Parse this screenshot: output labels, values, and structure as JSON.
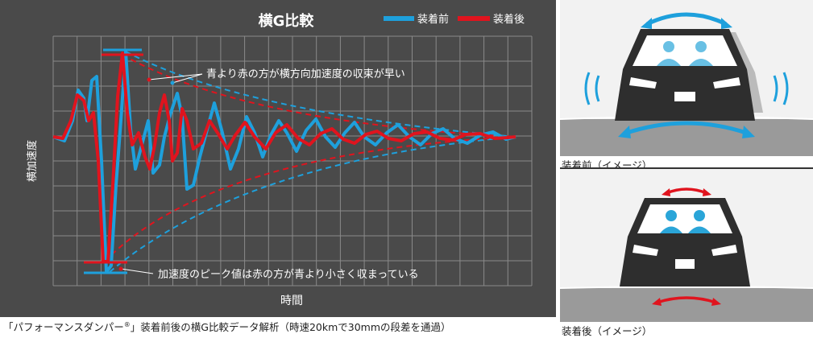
{
  "chart_data": {
    "type": "line",
    "title": "横G比較",
    "xlabel": "時間",
    "ylabel": "横加速度",
    "grid": true,
    "legend_placement": "top-right",
    "series": [
      {
        "name": "装着前",
        "color": "#1ea0dc"
      },
      {
        "name": "装着後",
        "color": "#e0141e"
      }
    ],
    "annotations": [
      "青より赤の方が横方向加速度の収束が早い",
      "加速度のピーク値は赤の方が青より小さく収まっている"
    ]
  },
  "caption": {
    "prefix": "「パフォーマンスダンパー",
    "reg": "®",
    "suffix": "」装着前後の横G比較データ解析（時速20kmで30mmの段差を通過）"
  },
  "panels": {
    "before_label": "装着前（イメージ）",
    "after_label": "装着後（イメージ）"
  },
  "colors": {
    "blue": "#1ea0dc",
    "red": "#e0141e",
    "bg": "#4a4a4a"
  }
}
